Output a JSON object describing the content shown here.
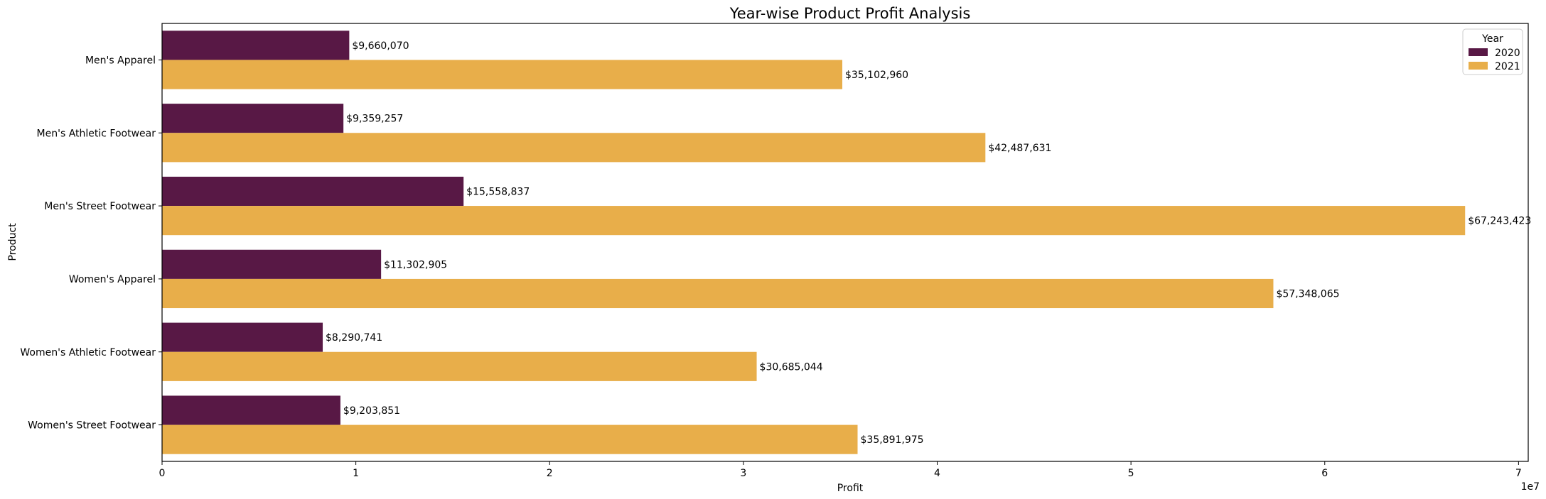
{
  "chart_data": {
    "type": "bar",
    "orientation": "horizontal",
    "title": "Year-wise Product Profit Analysis",
    "xlabel": "Profit",
    "ylabel": "Product",
    "x_offset_text": "1e7",
    "xlim": [
      0,
      70500000
    ],
    "x_ticks": [
      0,
      10000000,
      20000000,
      30000000,
      40000000,
      50000000,
      60000000,
      70000000
    ],
    "x_tick_labels": [
      "0",
      "1",
      "2",
      "3",
      "4",
      "5",
      "6",
      "7"
    ],
    "categories": [
      "Men's Apparel",
      "Men's Athletic Footwear",
      "Men's Street Footwear",
      "Women's Apparel",
      "Women's Athletic Footwear",
      "Women's Street Footwear"
    ],
    "series": [
      {
        "name": "2020",
        "color": "#581845",
        "values": [
          9660070,
          9359257,
          15558837,
          11302905,
          8290741,
          9203851
        ],
        "labels": [
          "$9,660,070",
          "$9,359,257",
          "$15,558,837",
          "$11,302,905",
          "$8,290,741",
          "$9,203,851"
        ]
      },
      {
        "name": "2021",
        "color": "#E8AE4A",
        "values": [
          35102960,
          42487631,
          67243423,
          57348065,
          30685044,
          35891975
        ],
        "labels": [
          "$35,102,960",
          "$42,487,631",
          "$67,243,423",
          "$57,348,065",
          "$30,685,044",
          "$35,891,975"
        ]
      }
    ],
    "legend": {
      "title": "Year",
      "position": "top-right"
    },
    "grid": false
  }
}
